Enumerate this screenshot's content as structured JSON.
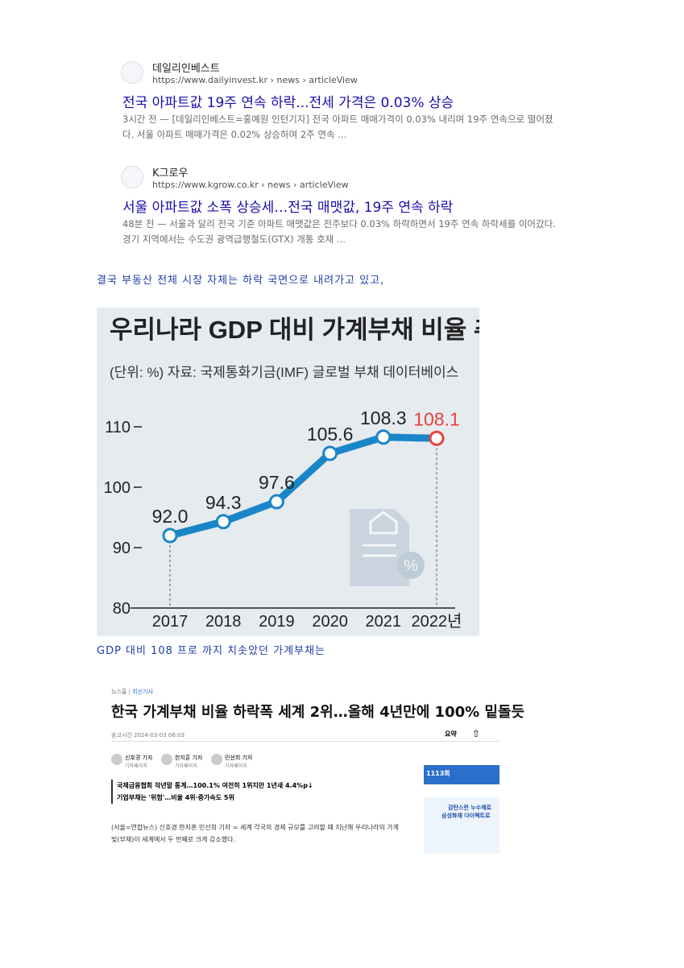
{
  "results": [
    {
      "site": "데일리인베스트",
      "url": "https://www.dailyinvest.kr › news › articleView",
      "title": "전국 아파트값 19주 연속 하락...전세 가격은 0.03% 상승",
      "snippet": "3시간 전 — [데일리인베스트=홍예원 인턴기자] 전국 아파트 매매가격이 0.03% 내리며 19주 연속으로 떨어졌다. 서울 아파트 매매가격은 0.02% 상승하며 2주 연속 ..."
    },
    {
      "site": "K그로우",
      "url": "https://www.kgrow.co.kr › news › articleView",
      "title": "서울 아파트값 소폭 상승세…전국 매맷값, 19주 연속 하락",
      "snippet": "48분 전 — 서울과 달리 전국 기준 아파트 매맷값은 전주보다 0.03% 하락하면서 19주 연속 하락세를 이어갔다. 경기 지역에서는 수도권 광역급행철도(GTX) 개통 호재 ..."
    }
  ],
  "caption1": "결국 부동산 전체 시장 자체는 하락 국면으로 내려가고 있고,",
  "chart_data": {
    "type": "line",
    "title": "우리나라 GDP 대비 가계부채 비율 추이",
    "subtitle": "(단위: %) 자료: 국제통화기금(IMF) 글로벌 부채 데이터베이스",
    "categories": [
      "2017",
      "2018",
      "2019",
      "2020",
      "2021",
      "2022년"
    ],
    "values": [
      92.0,
      94.3,
      97.6,
      105.6,
      108.3,
      108.1
    ],
    "value_labels": [
      "92.0",
      "94.3",
      "97.6",
      "105.6",
      "108.3",
      "108.1"
    ],
    "ylim": [
      80,
      113
    ],
    "yticks": [
      80,
      90,
      100,
      110
    ],
    "color": "#1a86c8",
    "highlight_color": "#e8413c"
  },
  "caption2": "GDP 대비 108 프로 까지 치솟았던 가계부채는",
  "news": {
    "breadcrumb": [
      "뉴스홈",
      "최신기사"
    ],
    "headline": "한국 가계부채 비율 하락폭 세계 2위…올해 4년만에 100% 밑돌듯",
    "date": "송고시간 2024-03-03 06:03",
    "summary": "요약",
    "reporters": [
      {
        "name": "신호경 기자",
        "sub": "기자페이지"
      },
      {
        "name": "한지훈 기자",
        "sub": "기자페이지"
      },
      {
        "name": "민선희 기자",
        "sub": "기자페이지"
      }
    ],
    "bullets": [
      "국제금융협회 작년말 통계…100.1% 여전히 1위지만 1년새 4.4%p↓",
      "기업부채는 '위험'…비율 4위·증가속도 5위"
    ],
    "body": "(서울=연합뉴스) 신호경 한지훈 민선희 기자 = 세계 각국의 경제 규모를 고려할 때 지난해 우리나라의 가계 빚(부채)이 세계에서 두 번째로 크게 감소했다.",
    "ad": {
      "lotto": "1113회",
      "line1": "감탄스런 누수제로",
      "line2": "삼성화재 다이렉트로"
    }
  }
}
